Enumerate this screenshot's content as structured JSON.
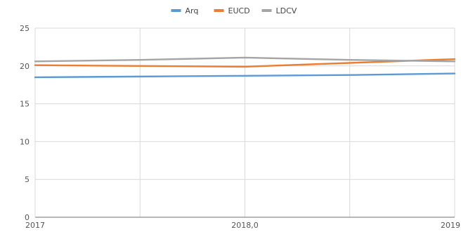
{
  "chart_data": {
    "type": "line",
    "title": "",
    "xlabel": "",
    "ylabel": "",
    "x": [
      2017,
      2017.5,
      2018,
      2018.5,
      2019
    ],
    "x_ticks": [
      {
        "value": 2017,
        "label": "2017"
      },
      {
        "value": 2018,
        "label": "2018,0"
      },
      {
        "value": 2019,
        "label": "2019"
      }
    ],
    "xlim": [
      2017,
      2019
    ],
    "ylim": [
      0,
      25
    ],
    "y_ticks": [
      0,
      5,
      10,
      15,
      20,
      25
    ],
    "grid": true,
    "legend_position": "top-center",
    "series": [
      {
        "name": "Arq",
        "color": "#5b9bd5",
        "values": [
          18.5,
          18.6,
          18.7,
          18.8,
          19.0
        ]
      },
      {
        "name": "EUCD",
        "color": "#ed7d31",
        "values": [
          20.1,
          20.0,
          19.9,
          20.4,
          20.9
        ]
      },
      {
        "name": "LDCV",
        "color": "#a5a5a5",
        "values": [
          20.6,
          20.8,
          21.1,
          20.8,
          20.6
        ]
      }
    ]
  }
}
